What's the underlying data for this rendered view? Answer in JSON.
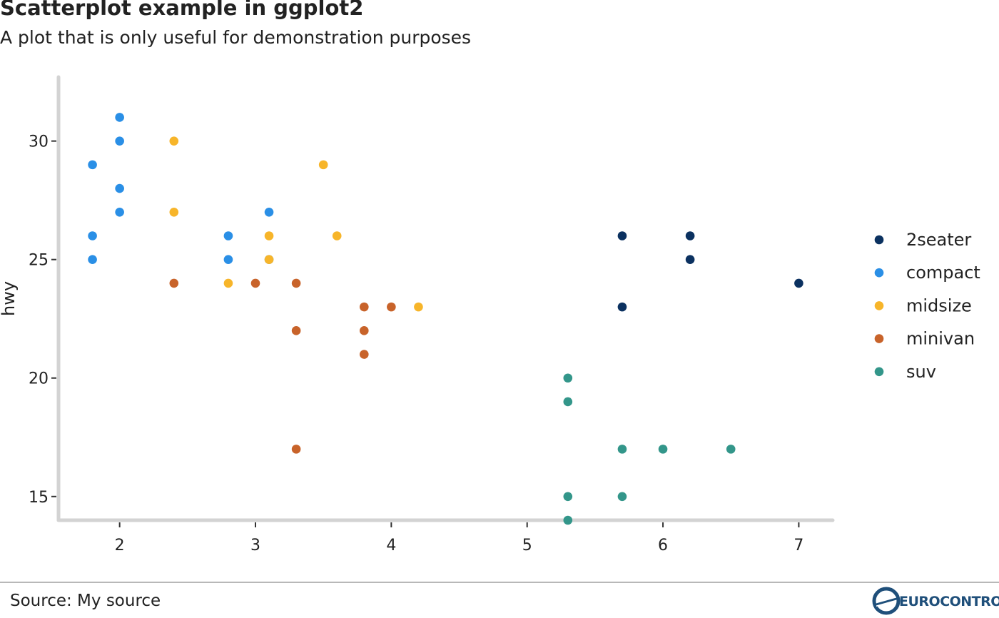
{
  "chart_data": {
    "type": "scatter",
    "title": "Scatterplot example in ggplot2",
    "subtitle": "A plot that is only useful for demonstration purposes",
    "xlabel": "",
    "ylabel": "hwy",
    "caption": "Source: My source",
    "xlim": [
      1.55,
      7.25
    ],
    "ylim": [
      14,
      32.7
    ],
    "x_ticks": [
      2,
      3,
      4,
      5,
      6,
      7
    ],
    "y_ticks": [
      15,
      20,
      25,
      30
    ],
    "grid": false,
    "legend_position": "right",
    "series": [
      {
        "name": "2seater",
        "color": "#0b3160",
        "points": [
          [
            5.7,
            26
          ],
          [
            5.7,
            23
          ],
          [
            6.2,
            26
          ],
          [
            6.2,
            25
          ],
          [
            7.0,
            24
          ]
        ]
      },
      {
        "name": "compact",
        "color": "#2a8fe6",
        "points": [
          [
            1.8,
            29
          ],
          [
            1.8,
            26
          ],
          [
            1.8,
            25
          ],
          [
            2.0,
            31
          ],
          [
            2.0,
            30
          ],
          [
            2.0,
            28
          ],
          [
            2.0,
            27
          ],
          [
            2.8,
            26
          ],
          [
            2.8,
            25
          ],
          [
            3.1,
            27
          ],
          [
            3.1,
            25
          ]
        ]
      },
      {
        "name": "midsize",
        "color": "#f7b52a",
        "points": [
          [
            2.4,
            30
          ],
          [
            2.4,
            27
          ],
          [
            2.8,
            24
          ],
          [
            3.1,
            26
          ],
          [
            3.1,
            25
          ],
          [
            3.5,
            29
          ],
          [
            3.6,
            26
          ],
          [
            4.2,
            23
          ]
        ]
      },
      {
        "name": "minivan",
        "color": "#c8632a",
        "points": [
          [
            2.4,
            24
          ],
          [
            3.0,
            24
          ],
          [
            3.3,
            24
          ],
          [
            3.3,
            22
          ],
          [
            3.3,
            17
          ],
          [
            3.8,
            23
          ],
          [
            3.8,
            22
          ],
          [
            3.8,
            21
          ],
          [
            4.0,
            23
          ]
        ]
      },
      {
        "name": "suv",
        "color": "#33968a",
        "points": [
          [
            5.3,
            20
          ],
          [
            5.3,
            19
          ],
          [
            5.3,
            15
          ],
          [
            5.3,
            14
          ],
          [
            5.7,
            17
          ],
          [
            5.7,
            15
          ],
          [
            6.0,
            17
          ],
          [
            6.5,
            17
          ]
        ]
      }
    ]
  },
  "logo": {
    "text": "EUROCONTROL"
  }
}
